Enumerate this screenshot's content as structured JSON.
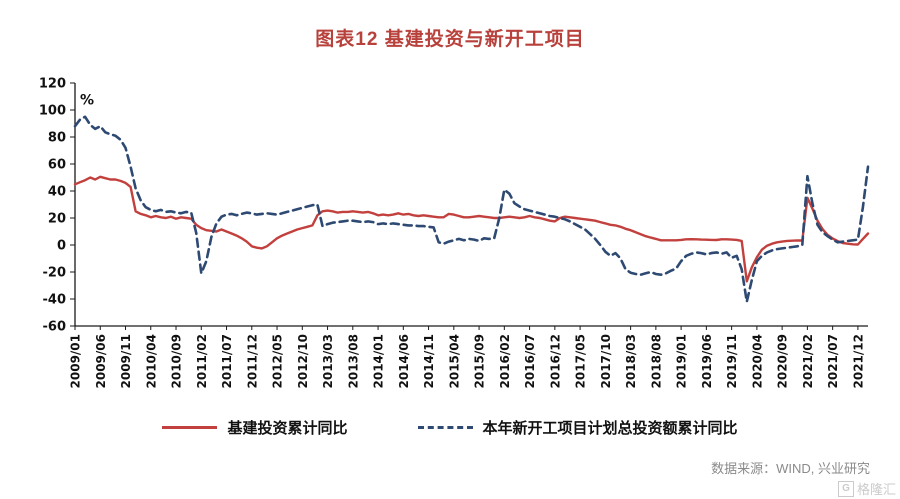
{
  "page": {
    "title": "图表12 基建投资与新开工项目",
    "title_color": "#b8413c",
    "source": "数据来源：WIND, 兴业研究",
    "watermark": "格隆汇"
  },
  "chart_data": {
    "type": "line",
    "title": "图表12 基建投资与新开工项目",
    "xlabel": "",
    "ylabel": "%",
    "ylim": [
      -60,
      120
    ],
    "yticks": [
      120,
      100,
      80,
      60,
      40,
      20,
      0,
      -20,
      -40,
      -60
    ],
    "grid": false,
    "legend_position": "bottom",
    "x_tick_step": 5,
    "x_tick_labels": [
      "2009/01",
      "2009/06",
      "2009/11",
      "2010/04",
      "2010/09",
      "2011/02",
      "2011/07",
      "2011/12",
      "2012/05",
      "2012/10",
      "2013/03",
      "2013/08",
      "2014/01",
      "2014/06",
      "2014/11",
      "2015/04",
      "2015/09",
      "2016/02",
      "2016/07",
      "2016/12",
      "2017/05",
      "2017/10",
      "2018/03",
      "2018/08",
      "2019/01",
      "2019/06",
      "2019/11",
      "2020/04",
      "2020/09",
      "2021/02",
      "2021/07",
      "2021/12"
    ],
    "x_start": "2009/01",
    "x_end": "2022/02",
    "x_frequency": "monthly",
    "series": [
      {
        "name": "基建投资累计同比",
        "color": "#c2403d",
        "style": "solid",
        "values": [
          45,
          46.5,
          48,
          50,
          48.5,
          50.5,
          49.5,
          48.5,
          48.5,
          47.5,
          46,
          43,
          25,
          23,
          22,
          20.5,
          21.5,
          20.5,
          20,
          21,
          19.5,
          20.5,
          20,
          19.5,
          15,
          12.5,
          11,
          10.5,
          10,
          11.5,
          10,
          8.5,
          7,
          5,
          2.5,
          -1,
          -2,
          -2.5,
          -1,
          2,
          5,
          7,
          8.5,
          10,
          11.5,
          12.5,
          13.5,
          14.5,
          22,
          25,
          25.5,
          25,
          24,
          24.5,
          24.5,
          25,
          24.5,
          24,
          24.5,
          23.5,
          22,
          22.5,
          22,
          22.5,
          23.5,
          22.5,
          23,
          22,
          21.5,
          22,
          21.5,
          21,
          20.5,
          20.5,
          23,
          22.5,
          21.5,
          20.5,
          20.5,
          21,
          21.5,
          21,
          20.5,
          20,
          20,
          20.5,
          21,
          20.5,
          20,
          20.5,
          21.5,
          20.5,
          20,
          19,
          18,
          17.5,
          20,
          21,
          20.5,
          20,
          19.5,
          19,
          18.5,
          18,
          17,
          16,
          15,
          14.5,
          13.5,
          12,
          11,
          9.5,
          8,
          6.5,
          5.5,
          4.5,
          3.5,
          3.5,
          3.5,
          3.5,
          3.8,
          4.2,
          4.3,
          4.2,
          4,
          3.9,
          3.8,
          3.7,
          4.2,
          4.2,
          4,
          3.8,
          3,
          -27,
          -16.5,
          -9,
          -3.5,
          -0.5,
          1,
          2,
          2.5,
          3,
          3.2,
          3.4,
          3.3,
          35,
          27,
          18,
          11.8,
          7.5,
          4.8,
          2.9,
          1.5,
          1,
          0.5,
          0.4,
          4.5,
          8.5
        ]
      },
      {
        "name": "本年新开工项目计划总投资额累计同比",
        "color": "#2e4a73",
        "style": "dashed",
        "values": [
          88,
          93,
          95,
          89,
          86,
          88,
          83.5,
          82,
          81,
          78,
          72,
          58,
          42,
          33,
          28,
          26,
          25,
          26,
          24.5,
          25,
          24,
          23.5,
          24.5,
          24,
          9,
          -21,
          -12,
          6,
          16,
          21,
          22.5,
          23,
          22,
          23,
          24,
          23.5,
          22.5,
          23,
          23.5,
          23,
          22.5,
          23.5,
          24.5,
          25.5,
          26.5,
          27.5,
          28.5,
          29.5,
          30,
          14,
          15.5,
          16.5,
          17,
          17.5,
          18,
          18,
          17.5,
          17,
          17.5,
          17,
          15.5,
          16,
          15.5,
          16,
          15.5,
          15,
          14.5,
          14.5,
          14,
          14,
          13.5,
          13,
          2,
          1,
          2.5,
          3.5,
          4.5,
          3.5,
          4.5,
          4,
          3,
          5,
          4.5,
          5,
          20,
          41,
          38,
          31,
          28.5,
          26.5,
          25.5,
          24.5,
          23.5,
          22.5,
          21.5,
          21,
          20,
          19,
          17.5,
          15.5,
          13.5,
          11.5,
          8,
          4.5,
          0,
          -5,
          -8,
          -6,
          -10,
          -18,
          -20.5,
          -21.5,
          -22,
          -21,
          -20,
          -21.5,
          -22,
          -21,
          -19,
          -17.5,
          -12,
          -8,
          -6.5,
          -5.5,
          -6,
          -7,
          -6,
          -5.5,
          -6.5,
          -5.5,
          -9.5,
          -8,
          -18,
          -42,
          -26,
          -12,
          -8,
          -5.5,
          -4,
          -3,
          -2.5,
          -2,
          -1.5,
          -1,
          0,
          51,
          31,
          15,
          9.5,
          6.5,
          4,
          2,
          2.5,
          3,
          3.5,
          4,
          28,
          58
        ]
      }
    ]
  }
}
